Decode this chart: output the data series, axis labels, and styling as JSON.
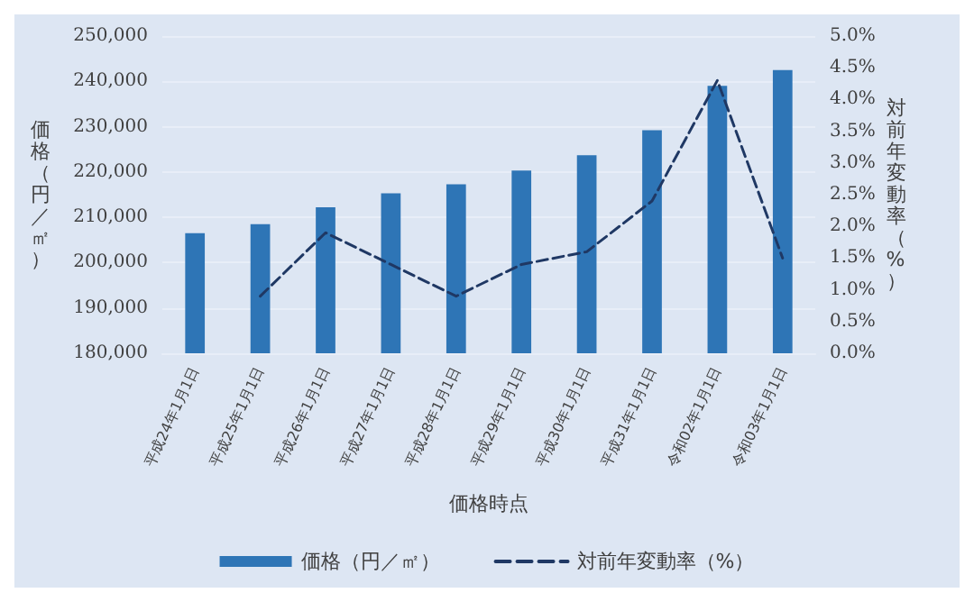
{
  "chart_data": {
    "type": "bar",
    "xlabel": "価格時点",
    "ylabel": "価格（円／㎡）",
    "y2label": "対前年変動率（%）",
    "categories": [
      "平成24年1月1日",
      "平成25年1月1日",
      "平成26年1月1日",
      "平成27年1月1日",
      "平成28年1月1日",
      "平成29年1月1日",
      "平成30年1月1日",
      "平成31年1月1日",
      "令和02年1月1日",
      "令和03年1月1日"
    ],
    "series": [
      {
        "name": "価格（円／㎡）",
        "color": "#2e75b6",
        "values": [
          206500,
          208500,
          212200,
          215300,
          217300,
          220300,
          223700,
          229200,
          239000,
          242500
        ]
      },
      {
        "name": "対前年変動率（%）",
        "type": "line",
        "axis": "y2",
        "color": "#1f3864",
        "line_style": "dashed",
        "marker": "none",
        "values": [
          null,
          0.9,
          1.9,
          1.4,
          0.9,
          1.4,
          1.6,
          2.4,
          4.3,
          1.5
        ]
      }
    ],
    "ylim": [
      180000,
      250000
    ],
    "yticks": [
      {
        "value": 180000,
        "label": "180,000"
      },
      {
        "value": 190000,
        "label": "190,000"
      },
      {
        "value": 200000,
        "label": "200,000"
      },
      {
        "value": 210000,
        "label": "210,000"
      },
      {
        "value": 220000,
        "label": "220,000"
      },
      {
        "value": 230000,
        "label": "230,000"
      },
      {
        "value": 240000,
        "label": "240,000"
      },
      {
        "value": 250000,
        "label": "250,000"
      }
    ],
    "y2lim": [
      0,
      5
    ],
    "y2ticks": [
      {
        "value": 0,
        "label": "0.0%"
      },
      {
        "value": 0.5,
        "label": "0.5%"
      },
      {
        "value": 1,
        "label": "1.0%"
      },
      {
        "value": 1.5,
        "label": "1.5%"
      },
      {
        "value": 2,
        "label": "2.0%"
      },
      {
        "value": 2.5,
        "label": "2.5%"
      },
      {
        "value": 3,
        "label": "3.0%"
      },
      {
        "value": 3.5,
        "label": "3.5%"
      },
      {
        "value": 4,
        "label": "4.0%"
      },
      {
        "value": 4.5,
        "label": "4.5%"
      },
      {
        "value": 5,
        "label": "5.0%"
      }
    ],
    "grid": "y",
    "legend": "bottom"
  }
}
